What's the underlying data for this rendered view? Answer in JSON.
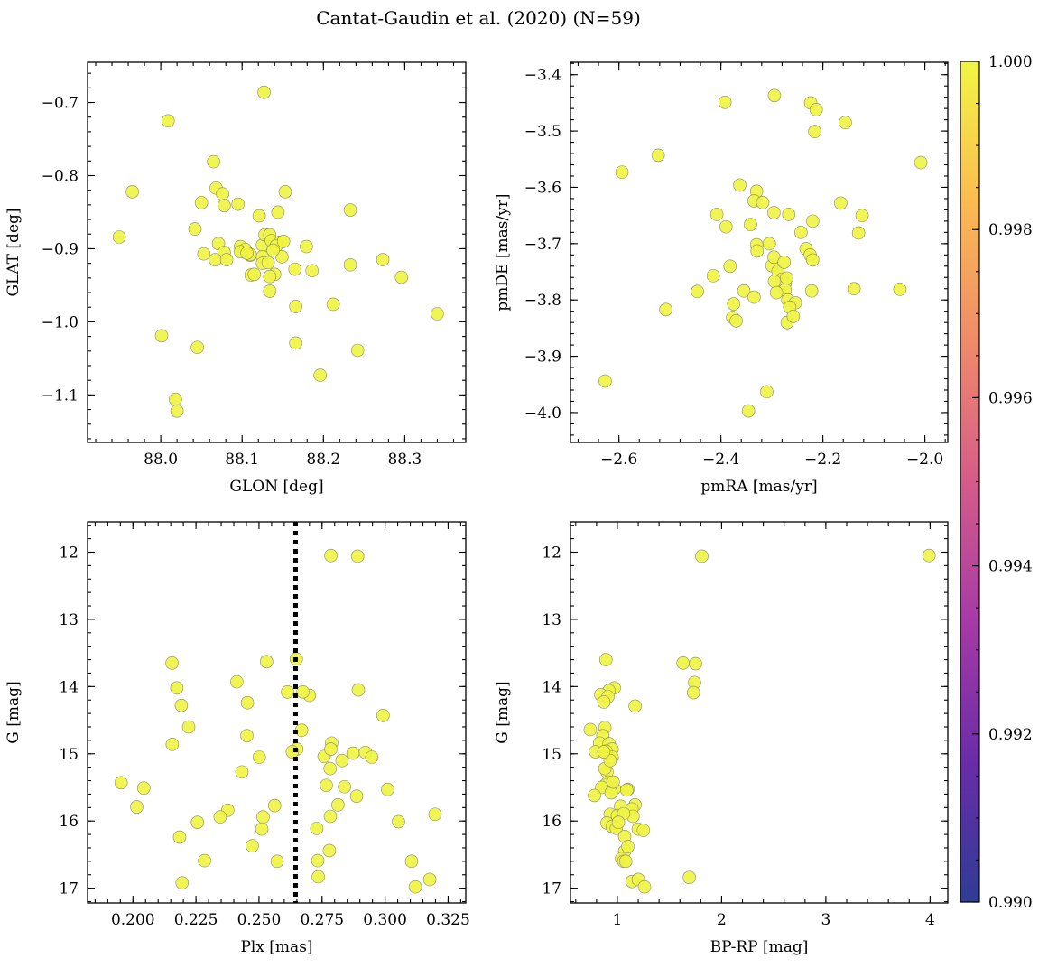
{
  "figure_title": "Cantat-Gaudin et al. (2020) (N=59)",
  "colorbar": {
    "ticks": [
      "1.000",
      "0.998",
      "0.996",
      "0.994",
      "0.992",
      "0.990"
    ],
    "range": [
      0.99,
      1.0
    ],
    "cmap_stops": [
      "#2f3c96",
      "#6a2ca8",
      "#a63aa6",
      "#d45c89",
      "#f08a6a",
      "#fbbb51",
      "#f2f545"
    ]
  },
  "chart_data": [
    {
      "type": "scatter",
      "name": "position",
      "xlabel": "GLON [deg]",
      "ylabel": "GLAT [deg]",
      "xlim": [
        87.91,
        88.375
      ],
      "ylim": [
        -1.165,
        -0.645
      ],
      "xticks": [
        88.0,
        88.1,
        88.2,
        88.3
      ],
      "xtick_labels": [
        "88.0",
        "88.1",
        "88.2",
        "88.3"
      ],
      "yticks": [
        -0.7,
        -0.8,
        -0.9,
        -1.0,
        -1.1
      ],
      "ytick_labels": [
        "−0.7",
        "−0.8",
        "−0.9",
        "−1.0",
        "−1.1"
      ],
      "x": [
        88.127,
        88.009,
        87.965,
        88.065,
        87.949,
        88.068,
        88.076,
        88.05,
        88.078,
        88.095,
        88.042,
        88.121,
        88.144,
        88.153,
        88.233,
        88.071,
        88.078,
        88.098,
        88.104,
        88.11,
        88.125,
        88.128,
        88.134,
        88.136,
        88.147,
        88.142,
        88.053,
        88.067,
        88.081,
        88.111,
        88.125,
        88.14,
        88.134,
        88.149,
        88.115,
        88.165,
        88.179,
        88.186,
        88.273,
        88.296,
        88.233,
        88.134,
        88.212,
        88.166,
        88.34,
        88.001,
        88.045,
        88.166,
        88.242,
        88.196,
        88.018,
        88.02,
        88.11,
        88.098,
        88.138,
        88.125,
        88.106,
        88.132,
        88.151
      ],
      "y": [
        -0.686,
        -0.725,
        -0.822,
        -0.781,
        -0.884,
        -0.817,
        -0.825,
        -0.837,
        -0.841,
        -0.839,
        -0.873,
        -0.855,
        -0.85,
        -0.822,
        -0.847,
        -0.893,
        -0.905,
        -0.897,
        -0.901,
        -0.909,
        -0.895,
        -0.881,
        -0.881,
        -0.889,
        -0.891,
        -0.896,
        -0.907,
        -0.915,
        -0.915,
        -0.936,
        -0.911,
        -0.935,
        -0.938,
        -0.911,
        -0.935,
        -0.928,
        -0.897,
        -0.93,
        -0.915,
        -0.939,
        -0.922,
        -0.958,
        -0.976,
        -0.979,
        -0.989,
        -1.019,
        -1.035,
        -1.029,
        -1.039,
        -1.073,
        -1.106,
        -1.122,
        -0.908,
        -0.904,
        -0.902,
        -0.92,
        -0.906,
        -0.919,
        -0.89
      ]
    },
    {
      "type": "scatter",
      "name": "proper-motion",
      "xlabel": "pmRA [mas/yr]",
      "ylabel": "pmDE [mas/yr]",
      "xlim": [
        -2.695,
        -1.955
      ],
      "ylim": [
        -4.053,
        -3.378
      ],
      "xticks": [
        -2.6,
        -2.4,
        -2.2,
        -2.0
      ],
      "xtick_labels": [
        "−2.6",
        "−2.4",
        "−2.2",
        "−2.0"
      ],
      "yticks": [
        -3.4,
        -3.5,
        -3.6,
        -3.7,
        -3.8,
        -3.9,
        -4.0
      ],
      "ytick_labels": [
        "−3.4",
        "−3.5",
        "−3.6",
        "−3.7",
        "−3.8",
        "−3.9",
        "−4.0"
      ],
      "x": [
        -2.295,
        -2.392,
        -2.224,
        -2.213,
        -2.216,
        -2.156,
        -2.008,
        -2.523,
        -2.594,
        -2.363,
        -2.33,
        -2.335,
        -2.318,
        -2.165,
        -2.123,
        -2.296,
        -2.408,
        -2.39,
        -2.342,
        -2.267,
        -2.22,
        -2.243,
        -2.13,
        -2.33,
        -2.329,
        -2.305,
        -2.233,
        -2.225,
        -2.22,
        -2.3,
        -2.382,
        -2.415,
        -2.288,
        -2.28,
        -2.274,
        -2.295,
        -2.274,
        -2.355,
        -2.446,
        -2.222,
        -2.139,
        -2.049,
        -2.335,
        -2.269,
        -2.254,
        -2.291,
        -2.375,
        -2.265,
        -2.508,
        -2.377,
        -2.37,
        -2.27,
        -2.258,
        -2.627,
        -2.31,
        -2.346,
        -2.296,
        -2.276,
        -2.271
      ],
      "y": [
        -3.437,
        -3.449,
        -3.45,
        -3.462,
        -3.501,
        -3.485,
        -3.556,
        -3.543,
        -3.573,
        -3.596,
        -3.607,
        -3.624,
        -3.627,
        -3.628,
        -3.65,
        -3.645,
        -3.648,
        -3.67,
        -3.666,
        -3.648,
        -3.66,
        -3.68,
        -3.681,
        -3.702,
        -3.713,
        -3.7,
        -3.709,
        -3.72,
        -3.729,
        -3.739,
        -3.74,
        -3.757,
        -3.749,
        -3.763,
        -3.771,
        -3.767,
        -3.782,
        -3.784,
        -3.785,
        -3.784,
        -3.78,
        -3.781,
        -3.795,
        -3.8,
        -3.805,
        -3.787,
        -3.807,
        -3.813,
        -3.817,
        -3.831,
        -3.837,
        -3.84,
        -3.829,
        -3.944,
        -3.963,
        -3.997,
        -3.724,
        -3.733,
        -3.761
      ]
    },
    {
      "type": "scatter",
      "name": "parallax-magnitude",
      "xlabel": "Plx [mas]",
      "ylabel": "G [mag]",
      "xlim": [
        0.182,
        0.332
      ],
      "ylim": [
        17.22,
        11.55
      ],
      "xticks": [
        0.2,
        0.225,
        0.25,
        0.275,
        0.3,
        0.325
      ],
      "xtick_labels": [
        "0.200",
        "0.225",
        "0.250",
        "0.275",
        "0.300",
        "0.325"
      ],
      "yticks": [
        12,
        13,
        14,
        15,
        16,
        17
      ],
      "ytick_labels": [
        "12",
        "13",
        "14",
        "15",
        "16",
        "17"
      ],
      "vline": {
        "x": 0.2645,
        "style": "dotted",
        "color": "#000000"
      },
      "x": [
        0.2785,
        0.2891,
        0.2155,
        0.253,
        0.2648,
        0.2174,
        0.2412,
        0.2613,
        0.27,
        0.2894,
        0.2192,
        0.2454,
        0.2992,
        0.2221,
        0.2669,
        0.2452,
        0.2156,
        0.2788,
        0.2758,
        0.2501,
        0.2873,
        0.2922,
        0.2947,
        0.265,
        0.2782,
        0.1953,
        0.2043,
        0.2432,
        0.2839,
        0.2767,
        0.301,
        0.2376,
        0.2015,
        0.2813,
        0.2346,
        0.2562,
        0.2887,
        0.2783,
        0.2256,
        0.2516,
        0.3198,
        0.3053,
        0.2729,
        0.2185,
        0.2473,
        0.2511,
        0.2572,
        0.2284,
        0.2779,
        0.3105,
        0.2733,
        0.2195,
        0.3177,
        0.2735,
        0.312,
        0.2674,
        0.2785,
        0.2829,
        0.2632
      ],
      "y": [
        12.05,
        12.06,
        13.65,
        13.63,
        13.59,
        14.02,
        13.93,
        14.08,
        14.13,
        14.05,
        14.28,
        14.24,
        14.43,
        14.6,
        14.65,
        14.73,
        14.86,
        14.84,
        15.04,
        15.05,
        14.99,
        14.98,
        15.05,
        14.93,
        15.22,
        15.43,
        15.51,
        15.27,
        15.49,
        15.47,
        15.53,
        15.84,
        15.79,
        15.76,
        15.94,
        15.77,
        15.63,
        15.93,
        16.02,
        15.94,
        15.9,
        16.01,
        16.11,
        16.24,
        16.37,
        16.12,
        16.6,
        16.59,
        16.44,
        16.6,
        16.59,
        16.92,
        16.87,
        16.83,
        16.98,
        14.08,
        14.93,
        15.1,
        14.97
      ]
    },
    {
      "type": "scatter",
      "name": "color-magnitude",
      "xlabel": "BP-RP [mag]",
      "ylabel": "G [mag]",
      "xlim": [
        0.55,
        4.17
      ],
      "ylim": [
        17.22,
        11.55
      ],
      "xticks": [
        1,
        2,
        3,
        4
      ],
      "xtick_labels": [
        "1",
        "2",
        "3",
        "4"
      ],
      "yticks": [
        12,
        13,
        14,
        15,
        16,
        17
      ],
      "ytick_labels": [
        "12",
        "13",
        "14",
        "15",
        "16",
        "17"
      ],
      "x": [
        1.81,
        3.99,
        1.63,
        1.75,
        0.89,
        1.74,
        0.97,
        0.92,
        1.73,
        0.84,
        0.91,
        0.87,
        1.17,
        0.88,
        0.74,
        0.86,
        0.83,
        0.92,
        0.95,
        0.79,
        0.9,
        0.89,
        0.95,
        0.9,
        0.88,
        0.91,
        0.88,
        1.1,
        0.85,
        0.97,
        0.94,
        0.78,
        1.17,
        1.03,
        1.14,
        0.93,
        1.0,
        1.2,
        0.9,
        0.95,
        1.15,
        1.06,
        1.25,
        0.99,
        1.07,
        1.07,
        1.1,
        1.04,
        1.06,
        1.08,
        1.14,
        1.2,
        1.69,
        1.26,
        0.93,
        1.09,
        0.87,
        0.96,
        1.01
      ],
      "y": [
        12.06,
        12.05,
        13.65,
        13.66,
        13.6,
        13.94,
        14.02,
        14.06,
        14.09,
        14.12,
        14.15,
        14.23,
        14.29,
        14.61,
        14.64,
        14.73,
        14.84,
        14.85,
        14.93,
        14.97,
        15.0,
        14.96,
        15.05,
        15.27,
        15.22,
        15.42,
        15.47,
        15.53,
        15.5,
        15.52,
        15.58,
        15.62,
        15.76,
        15.78,
        15.82,
        15.9,
        15.92,
        16.12,
        16.03,
        16.08,
        15.93,
        15.89,
        16.14,
        16.11,
        16.23,
        16.45,
        16.38,
        16.56,
        16.6,
        16.6,
        16.9,
        16.87,
        16.84,
        16.98,
        15.1,
        15.54,
        14.97,
        15.42,
        16.02
      ]
    }
  ]
}
